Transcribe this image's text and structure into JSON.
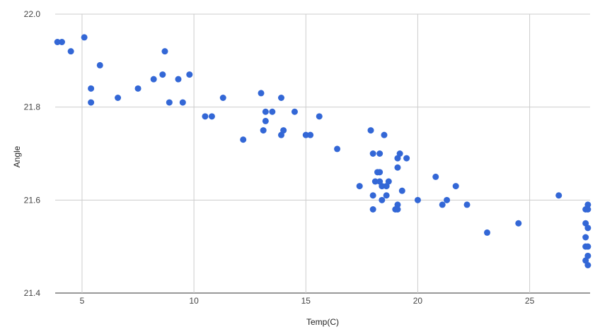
{
  "chart_data": {
    "type": "scatter",
    "title": "",
    "xlabel": "Temp(C)",
    "ylabel": "Angle",
    "xlim": [
      3.8,
      27.7
    ],
    "ylim": [
      21.4,
      22.0
    ],
    "xticks": [
      5,
      10,
      15,
      20,
      25
    ],
    "yticks": [
      "21.4",
      "21.6",
      "21.8",
      "22.0"
    ],
    "grid": true,
    "color": "#3367d6",
    "series": [
      {
        "points": [
          [
            3.9,
            21.94
          ],
          [
            4.1,
            21.94
          ],
          [
            4.5,
            21.92
          ],
          [
            5.1,
            21.95
          ],
          [
            5.4,
            21.81
          ],
          [
            5.4,
            21.84
          ],
          [
            5.8,
            21.89
          ],
          [
            6.6,
            21.82
          ],
          [
            7.5,
            21.84
          ],
          [
            8.2,
            21.86
          ],
          [
            8.6,
            21.87
          ],
          [
            8.7,
            21.92
          ],
          [
            8.9,
            21.81
          ],
          [
            9.3,
            21.86
          ],
          [
            9.5,
            21.81
          ],
          [
            9.8,
            21.87
          ],
          [
            10.5,
            21.78
          ],
          [
            10.8,
            21.78
          ],
          [
            11.3,
            21.82
          ],
          [
            12.2,
            21.73
          ],
          [
            13.0,
            21.83
          ],
          [
            13.1,
            21.75
          ],
          [
            13.2,
            21.79
          ],
          [
            13.2,
            21.77
          ],
          [
            13.5,
            21.79
          ],
          [
            13.9,
            21.82
          ],
          [
            13.9,
            21.74
          ],
          [
            14.0,
            21.75
          ],
          [
            14.5,
            21.79
          ],
          [
            15.0,
            21.74
          ],
          [
            15.2,
            21.74
          ],
          [
            15.6,
            21.78
          ],
          [
            16.4,
            21.71
          ],
          [
            17.4,
            21.63
          ],
          [
            17.9,
            21.75
          ],
          [
            18.0,
            21.7
          ],
          [
            18.0,
            21.61
          ],
          [
            18.0,
            21.58
          ],
          [
            18.1,
            21.64
          ],
          [
            18.2,
            21.66
          ],
          [
            18.3,
            21.7
          ],
          [
            18.3,
            21.66
          ],
          [
            18.3,
            21.64
          ],
          [
            18.4,
            21.6
          ],
          [
            18.4,
            21.63
          ],
          [
            18.5,
            21.74
          ],
          [
            18.6,
            21.63
          ],
          [
            18.6,
            21.61
          ],
          [
            18.7,
            21.64
          ],
          [
            19.0,
            21.58
          ],
          [
            19.1,
            21.59
          ],
          [
            19.1,
            21.58
          ],
          [
            19.1,
            21.69
          ],
          [
            19.1,
            21.67
          ],
          [
            19.2,
            21.7
          ],
          [
            19.3,
            21.62
          ],
          [
            19.5,
            21.69
          ],
          [
            20.0,
            21.6
          ],
          [
            20.8,
            21.65
          ],
          [
            21.1,
            21.59
          ],
          [
            21.3,
            21.6
          ],
          [
            21.7,
            21.63
          ],
          [
            22.2,
            21.59
          ],
          [
            23.1,
            21.53
          ],
          [
            24.5,
            21.55
          ],
          [
            26.3,
            21.61
          ],
          [
            27.5,
            21.5
          ],
          [
            27.5,
            21.47
          ],
          [
            27.5,
            21.52
          ],
          [
            27.5,
            21.55
          ],
          [
            27.5,
            21.58
          ],
          [
            27.6,
            21.59
          ],
          [
            27.6,
            21.58
          ],
          [
            27.6,
            21.54
          ],
          [
            27.6,
            21.5
          ],
          [
            27.6,
            21.48
          ],
          [
            27.6,
            21.46
          ]
        ]
      }
    ]
  }
}
